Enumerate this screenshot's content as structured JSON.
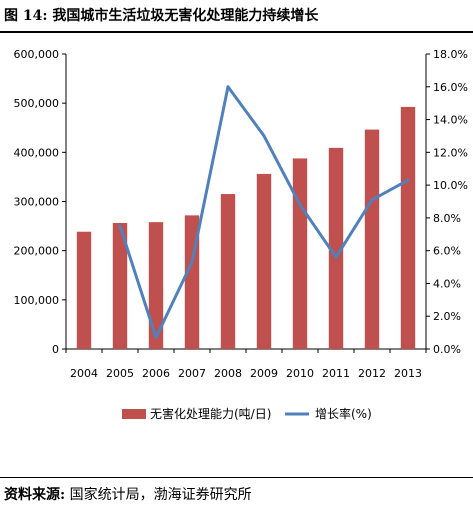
{
  "figure": {
    "title": "图 14:  我国城市生活垃圾无害化处理能力持续增长",
    "source_label": "资料来源:",
    "source_text": "国家统计局，渤海证券研究所"
  },
  "chart_data": {
    "type": "bar",
    "categories": [
      "2004",
      "2005",
      "2006",
      "2007",
      "2008",
      "2009",
      "2010",
      "2011",
      "2012",
      "2013"
    ],
    "series": [
      {
        "name": "无害化处理能力(吨/日)",
        "kind": "bar",
        "axis": "left",
        "color": "#C0504D",
        "values": [
          238519,
          256312,
          258048,
          271791,
          315153,
          356130,
          387607,
          409119,
          446268,
          492300
        ]
      },
      {
        "name": "增长率(%)",
        "kind": "line",
        "axis": "right",
        "color": "#4F81BD",
        "values": [
          null,
          7.5,
          0.7,
          5.3,
          16.0,
          13.0,
          8.8,
          5.6,
          9.1,
          10.3
        ]
      }
    ],
    "y_left": {
      "range": [
        0,
        600000
      ],
      "ticks": [
        "0",
        "100,000",
        "200,000",
        "300,000",
        "400,000",
        "500,000",
        "600,000"
      ]
    },
    "y_right": {
      "range": [
        0,
        18
      ],
      "ticks": [
        "0.0%",
        "2.0%",
        "4.0%",
        "6.0%",
        "8.0%",
        "10.0%",
        "12.0%",
        "14.0%",
        "16.0%",
        "18.0%"
      ]
    },
    "grid": false,
    "legend_position": "bottom"
  }
}
